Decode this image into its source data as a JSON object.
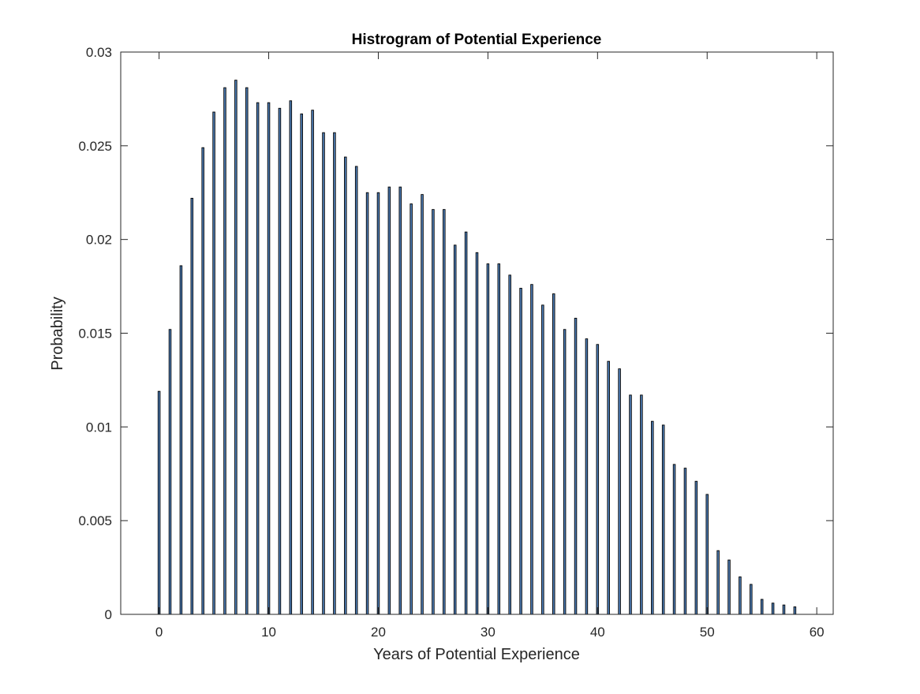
{
  "chart_data": {
    "type": "bar",
    "title": "Histrogram of Potential Experience",
    "xlabel": "Years of Potential Experience",
    "ylabel": "Probability",
    "xlim": [
      -3.5,
      61.5
    ],
    "ylim": [
      0,
      0.03
    ],
    "xticks": [
      0,
      10,
      20,
      30,
      40,
      50,
      60
    ],
    "xtick_labels": [
      "0",
      "10",
      "20",
      "30",
      "40",
      "50",
      "60"
    ],
    "yticks": [
      0,
      0.005,
      0.01,
      0.015,
      0.02,
      0.025,
      0.03
    ],
    "ytick_labels": [
      "0",
      "0.005",
      "0.01",
      "0.015",
      "0.02",
      "0.025",
      "0.03"
    ],
    "grid": false,
    "bar_color": "#4f7fb8",
    "edge_color": "#000000",
    "x": [
      0,
      1,
      2,
      3,
      4,
      5,
      6,
      7,
      8,
      9,
      10,
      11,
      12,
      13,
      14,
      15,
      16,
      17,
      18,
      19,
      20,
      21,
      22,
      23,
      24,
      25,
      26,
      27,
      28,
      29,
      30,
      31,
      32,
      33,
      34,
      35,
      36,
      37,
      38,
      39,
      40,
      41,
      42,
      43,
      44,
      45,
      46,
      47,
      48,
      49,
      50,
      51,
      52,
      53,
      54,
      55,
      56,
      57,
      58
    ],
    "values": [
      0.0119,
      0.0152,
      0.0186,
      0.0222,
      0.0249,
      0.0268,
      0.0281,
      0.0285,
      0.0281,
      0.0273,
      0.0273,
      0.027,
      0.0274,
      0.0267,
      0.0269,
      0.0257,
      0.0257,
      0.0244,
      0.0239,
      0.0225,
      0.0225,
      0.0228,
      0.0228,
      0.0219,
      0.0224,
      0.0216,
      0.0216,
      0.0197,
      0.0204,
      0.0193,
      0.0187,
      0.0187,
      0.0181,
      0.0174,
      0.0176,
      0.0165,
      0.0171,
      0.0152,
      0.0158,
      0.0147,
      0.0144,
      0.0135,
      0.0131,
      0.0117,
      0.0117,
      0.0103,
      0.0101,
      0.008,
      0.0078,
      0.0071,
      0.0064,
      0.0034,
      0.0029,
      0.002,
      0.0016,
      0.0008,
      0.0006,
      0.0005,
      0.0004
    ]
  }
}
